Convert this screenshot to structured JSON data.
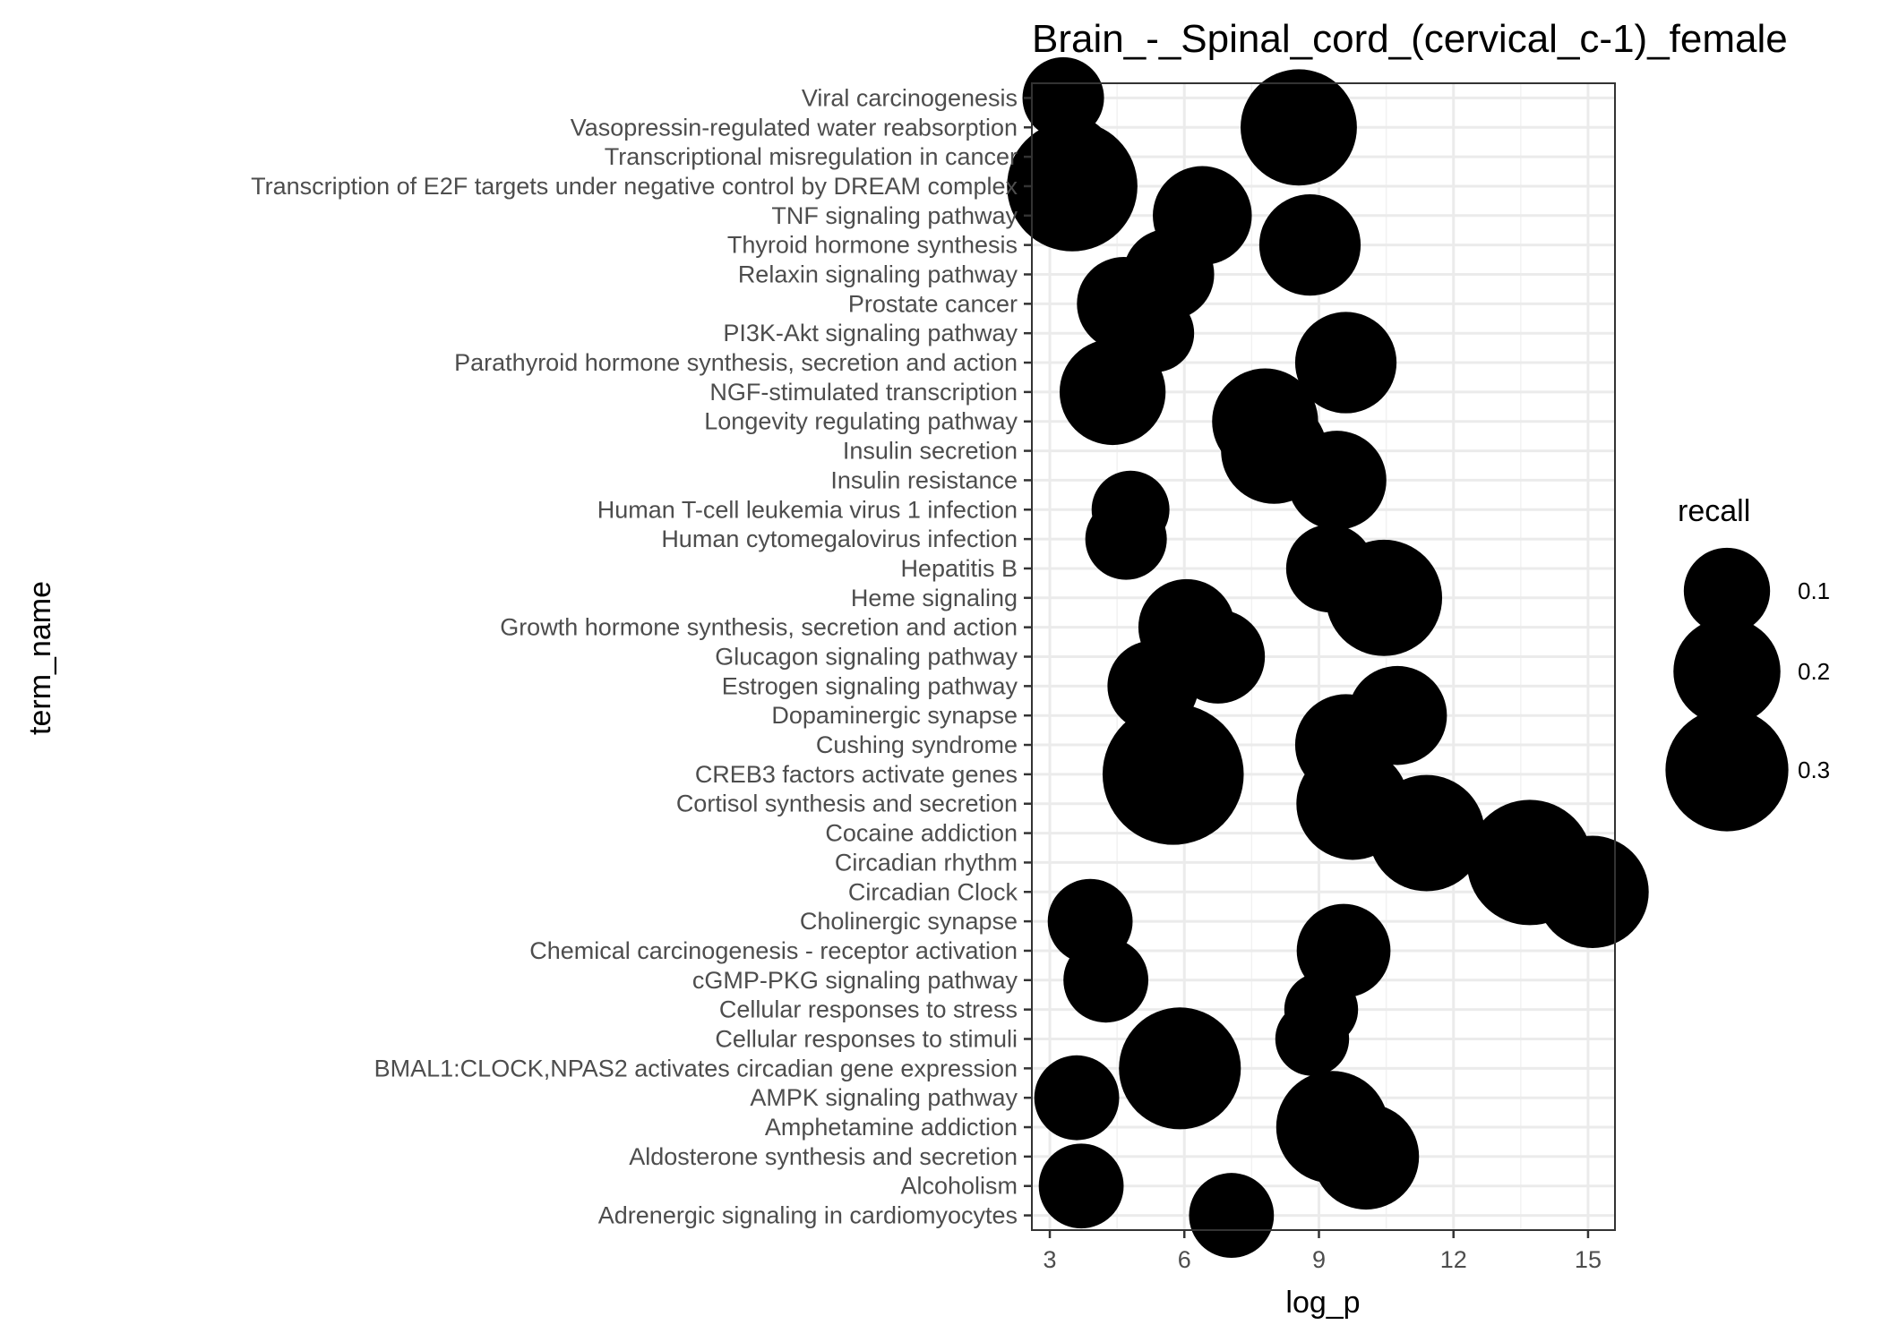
{
  "chart_data": {
    "type": "scatter",
    "title": "Brain_-_Spinal_cord_(cervical_c-1)_female",
    "xlabel": "log_p",
    "ylabel": "term_name",
    "xlim": [
      2.6,
      15.6
    ],
    "x_ticks": [
      3,
      6,
      9,
      12,
      15
    ],
    "grid": true,
    "size_variable": "recall",
    "legend": {
      "title": "recall",
      "position": "right",
      "items": [
        {
          "label": "0.1",
          "value": 0.1
        },
        {
          "label": "0.2",
          "value": 0.2
        },
        {
          "label": "0.3",
          "value": 0.3
        }
      ]
    },
    "categories": [
      "Viral carcinogenesis",
      "Vasopressin-regulated water reabsorption",
      "Transcriptional misregulation in cancer",
      "Transcription of E2F targets under negative control by DREAM complex",
      "TNF signaling pathway",
      "Thyroid hormone synthesis",
      "Relaxin signaling pathway",
      "Prostate cancer",
      "PI3K-Akt signaling pathway",
      "Parathyroid hormone synthesis, secretion and action",
      "NGF-stimulated transcription",
      "Longevity regulating pathway",
      "Insulin secretion",
      "Insulin resistance",
      "Human T-cell leukemia virus 1 infection",
      "Human cytomegalovirus infection",
      "Hepatitis B",
      "Heme signaling",
      "Growth hormone synthesis, secretion and action",
      "Glucagon signaling pathway",
      "Estrogen signaling pathway",
      "Dopaminergic synapse",
      "Cushing syndrome",
      "CREB3 factors activate genes",
      "Cortisol synthesis and secretion",
      "Cocaine addiction",
      "Circadian rhythm",
      "Circadian Clock",
      "Cholinergic synapse",
      "Chemical carcinogenesis - receptor activation",
      "cGMP-PKG signaling pathway",
      "Cellular responses to stress",
      "Cellular responses to stimuli",
      "BMAL1:CLOCK,NPAS2 activates circadian gene expression",
      "AMPK signaling pathway",
      "Amphetamine addiction",
      "Aldosterone synthesis and secretion",
      "Alcoholism",
      "Adrenergic signaling in cardiomyocytes"
    ],
    "points": [
      {
        "term": "Viral carcinogenesis",
        "log_p": 3.3,
        "recall": 0.06
      },
      {
        "term": "Vasopressin-regulated water reabsorption",
        "log_p": 8.55,
        "recall": 0.2
      },
      {
        "term": "Transcriptional misregulation in cancer",
        "log_p": 3.5,
        "recall": 0.06
      },
      {
        "term": "Transcription of E2F targets under negative control by DREAM complex",
        "log_p": 3.5,
        "recall": 0.28
      },
      {
        "term": "TNF signaling pathway",
        "log_p": 6.4,
        "recall": 0.12
      },
      {
        "term": "Thyroid hormone synthesis",
        "log_p": 8.8,
        "recall": 0.13
      },
      {
        "term": "Relaxin signaling pathway",
        "log_p": 5.65,
        "recall": 0.09
      },
      {
        "term": "Prostate cancer",
        "log_p": 4.65,
        "recall": 0.1
      },
      {
        "term": "PI3K-Akt signaling pathway",
        "log_p": 5.35,
        "recall": 0.05
      },
      {
        "term": "Parathyroid hormone synthesis, secretion and action",
        "log_p": 9.6,
        "recall": 0.13
      },
      {
        "term": "NGF-stimulated transcription",
        "log_p": 4.4,
        "recall": 0.15
      },
      {
        "term": "Longevity regulating pathway",
        "log_p": 7.8,
        "recall": 0.15
      },
      {
        "term": "Insulin secretion",
        "log_p": 8.0,
        "recall": 0.15
      },
      {
        "term": "Insulin resistance",
        "log_p": 9.4,
        "recall": 0.12
      },
      {
        "term": "Human T-cell leukemia virus 1 infection",
        "log_p": 4.8,
        "recall": 0.05
      },
      {
        "term": "Human cytomegalovirus infection",
        "log_p": 4.7,
        "recall": 0.06
      },
      {
        "term": "Hepatitis B",
        "log_p": 9.25,
        "recall": 0.08
      },
      {
        "term": "Heme signaling",
        "log_p": 10.45,
        "recall": 0.2
      },
      {
        "term": "Growth hormone synthesis, secretion and action",
        "log_p": 6.05,
        "recall": 0.11
      },
      {
        "term": "Glucagon signaling pathway",
        "log_p": 6.75,
        "recall": 0.1
      },
      {
        "term": "Estrogen signaling pathway",
        "log_p": 5.3,
        "recall": 0.09
      },
      {
        "term": "Dopaminergic synapse",
        "log_p": 10.75,
        "recall": 0.12
      },
      {
        "term": "Cushing syndrome",
        "log_p": 9.6,
        "recall": 0.13
      },
      {
        "term": "CREB3 factors activate genes",
        "log_p": 5.75,
        "recall": 0.35
      },
      {
        "term": "Cortisol synthesis and secretion",
        "log_p": 9.75,
        "recall": 0.18
      },
      {
        "term": "Cocaine addiction",
        "log_p": 11.4,
        "recall": 0.2
      },
      {
        "term": "Circadian rhythm",
        "log_p": 13.7,
        "recall": 0.25
      },
      {
        "term": "Circadian Clock",
        "log_p": 15.1,
        "recall": 0.18
      },
      {
        "term": "Cholinergic synapse",
        "log_p": 3.9,
        "recall": 0.07
      },
      {
        "term": "Chemical carcinogenesis - receptor activation",
        "log_p": 9.55,
        "recall": 0.1
      },
      {
        "term": "cGMP-PKG signaling pathway",
        "log_p": 4.25,
        "recall": 0.07
      },
      {
        "term": "Cellular responses to stress",
        "log_p": 9.05,
        "recall": 0.04
      },
      {
        "term": "Cellular responses to stimuli",
        "log_p": 8.85,
        "recall": 0.04
      },
      {
        "term": "BMAL1:CLOCK,NPAS2 activates circadian gene expression",
        "log_p": 5.9,
        "recall": 0.23
      },
      {
        "term": "AMPK signaling pathway",
        "log_p": 3.6,
        "recall": 0.07
      },
      {
        "term": "Amphetamine addiction",
        "log_p": 9.3,
        "recall": 0.18
      },
      {
        "term": "Aldosterone synthesis and secretion",
        "log_p": 10.05,
        "recall": 0.15
      },
      {
        "term": "Alcoholism",
        "log_p": 3.7,
        "recall": 0.07
      },
      {
        "term": "Adrenergic signaling in cardiomyocytes",
        "log_p": 7.05,
        "recall": 0.07
      }
    ]
  }
}
